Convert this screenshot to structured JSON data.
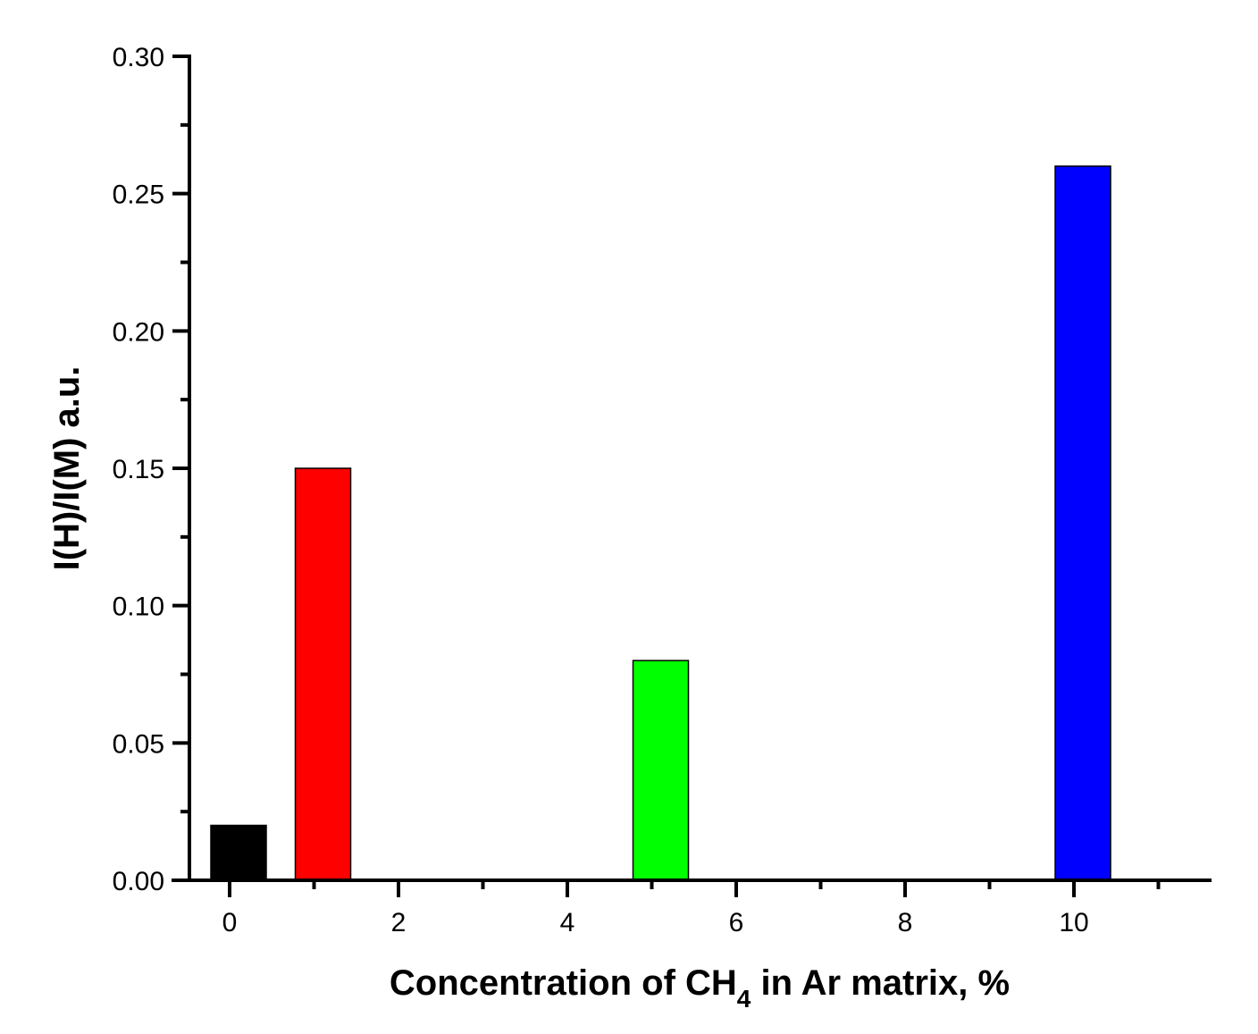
{
  "chart_data": {
    "type": "bar",
    "title": "",
    "xlabel": "Concentration of CH4 in Ar matrix, %",
    "xlabel_parts": {
      "pre": "Concentration of CH",
      "sub": "4",
      "post": " in Ar matrix, %"
    },
    "ylabel": "I(H)/I(M) a.u.",
    "x": [
      0,
      1,
      5,
      10
    ],
    "values": [
      0.02,
      0.15,
      0.08,
      0.26
    ],
    "bar_colors": [
      "#000000",
      "#ff0000",
      "#00ff00",
      "#0000ff"
    ],
    "xlim": [
      -0.8,
      11.6
    ],
    "ylim": [
      0.0,
      0.3
    ],
    "xticks": [
      0,
      2,
      4,
      6,
      8,
      10
    ],
    "xtick_labels": [
      "0",
      "2",
      "4",
      "6",
      "8",
      "10"
    ],
    "yticks": [
      0.0,
      0.05,
      0.1,
      0.15,
      0.2,
      0.25,
      0.3
    ],
    "ytick_labels": [
      "0.00",
      "0.05",
      "0.10",
      "0.15",
      "0.20",
      "0.25",
      "0.30"
    ],
    "grid": false,
    "legend": null
  }
}
